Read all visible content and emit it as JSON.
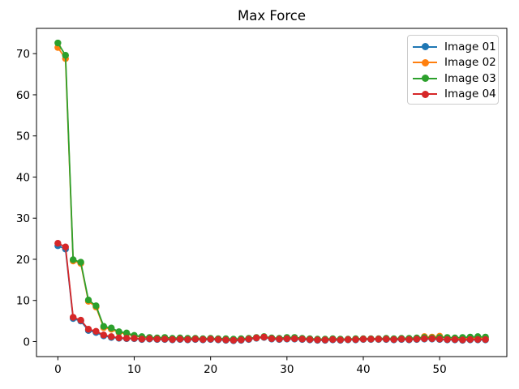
{
  "chart_data": {
    "type": "line",
    "title": "Max Force",
    "xlabel": "",
    "ylabel": "",
    "grid": false,
    "legend_position": "upper right",
    "marker": "o",
    "xlim": [
      -2.8,
      58.8
    ],
    "ylim": [
      -3.65,
      76.15
    ],
    "xticks": [
      0,
      10,
      20,
      30,
      40,
      50
    ],
    "yticks": [
      0,
      10,
      20,
      30,
      40,
      50,
      60,
      70
    ],
    "x": [
      0,
      1,
      2,
      3,
      4,
      5,
      6,
      7,
      8,
      9,
      10,
      11,
      12,
      13,
      14,
      15,
      16,
      17,
      18,
      19,
      20,
      21,
      22,
      23,
      24,
      25,
      26,
      27,
      28,
      29,
      30,
      31,
      32,
      33,
      34,
      35,
      36,
      37,
      38,
      39,
      40,
      41,
      42,
      43,
      44,
      45,
      46,
      47,
      48,
      49,
      50,
      51,
      52,
      53,
      54,
      55,
      56
    ],
    "series": [
      {
        "name": "Image 01",
        "color": "#1f77b4",
        "values": [
          23.3,
          22.5,
          5.6,
          5.0,
          2.7,
          2.2,
          1.4,
          1.0,
          0.8,
          0.7,
          0.7,
          0.5,
          0.6,
          0.5,
          0.5,
          0.4,
          0.5,
          0.4,
          0.5,
          0.4,
          0.5,
          0.4,
          0.3,
          0.2,
          0.3,
          0.5,
          0.8,
          1.0,
          0.6,
          0.5,
          0.6,
          0.6,
          0.5,
          0.4,
          0.3,
          0.3,
          0.4,
          0.3,
          0.4,
          0.4,
          0.5,
          0.5,
          0.5,
          0.5,
          0.4,
          0.5,
          0.4,
          0.5,
          0.6,
          0.6,
          0.5,
          0.4,
          0.4,
          0.3,
          0.4,
          0.4,
          0.4
        ]
      },
      {
        "name": "Image 02",
        "color": "#ff7f0e",
        "values": [
          71.5,
          68.8,
          19.6,
          19.0,
          9.8,
          8.4,
          3.4,
          3.0,
          2.2,
          1.9,
          1.3,
          1.1,
          0.9,
          0.8,
          0.9,
          0.7,
          0.8,
          0.7,
          0.7,
          0.6,
          0.7,
          0.6,
          0.6,
          0.5,
          0.6,
          0.7,
          0.9,
          1.1,
          0.8,
          0.7,
          0.9,
          0.9,
          0.7,
          0.6,
          0.5,
          0.5,
          0.6,
          0.5,
          0.5,
          0.6,
          0.6,
          0.6,
          0.6,
          0.7,
          0.6,
          0.7,
          0.7,
          0.8,
          1.2,
          1.1,
          1.3,
          0.9,
          0.8,
          0.7,
          0.8,
          0.9,
          0.8
        ]
      },
      {
        "name": "Image 03",
        "color": "#2ca02c",
        "values": [
          72.6,
          69.6,
          19.9,
          19.3,
          10.1,
          8.7,
          3.7,
          3.3,
          2.4,
          2.1,
          1.5,
          1.2,
          1.0,
          0.9,
          1.0,
          0.8,
          0.9,
          0.8,
          0.8,
          0.7,
          0.8,
          0.7,
          0.7,
          0.6,
          0.7,
          0.8,
          1.0,
          1.2,
          0.9,
          0.8,
          1.0,
          1.0,
          0.8,
          0.7,
          0.6,
          0.6,
          0.7,
          0.6,
          0.6,
          0.7,
          0.7,
          0.7,
          0.7,
          0.8,
          0.7,
          0.8,
          0.8,
          0.9,
          1.0,
          0.9,
          1.0,
          1.0,
          0.9,
          1.0,
          1.1,
          1.2,
          1.1
        ]
      },
      {
        "name": "Image 04",
        "color": "#d62728",
        "values": [
          23.9,
          23.0,
          5.9,
          5.2,
          3.0,
          2.5,
          1.6,
          1.2,
          0.9,
          0.8,
          0.8,
          0.6,
          0.7,
          0.6,
          0.6,
          0.5,
          0.6,
          0.5,
          0.6,
          0.5,
          0.6,
          0.5,
          0.4,
          0.3,
          0.4,
          0.6,
          0.9,
          1.1,
          0.7,
          0.6,
          0.7,
          0.7,
          0.6,
          0.5,
          0.4,
          0.4,
          0.5,
          0.4,
          0.5,
          0.5,
          0.6,
          0.6,
          0.6,
          0.6,
          0.5,
          0.6,
          0.5,
          0.6,
          0.7,
          0.7,
          0.6,
          0.5,
          0.5,
          0.4,
          0.5,
          0.5,
          0.5
        ]
      }
    ],
    "colors": {
      "spine": "#000000",
      "background": "#ffffff",
      "legend_border": "#cccccc"
    }
  }
}
